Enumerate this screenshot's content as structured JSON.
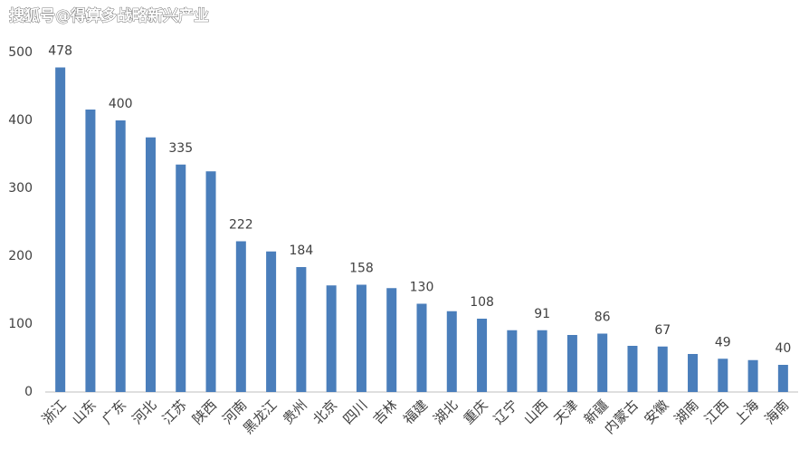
{
  "chart_data": {
    "type": "bar",
    "title": "搜狐号@得算多战略新兴产业",
    "categories": [
      "浙江",
      "山东",
      "广东",
      "河北",
      "江苏",
      "陕西",
      "河南",
      "黑龙江",
      "贵州",
      "北京",
      "四川",
      "吉林",
      "福建",
      "湖北",
      "重庆",
      "辽宁",
      "山西",
      "天津",
      "新疆",
      "内蒙古",
      "安徽",
      "湖南",
      "江西",
      "上海",
      "海南"
    ],
    "values": [
      478,
      416,
      400,
      375,
      335,
      325,
      222,
      207,
      184,
      157,
      158,
      153,
      130,
      119,
      108,
      91,
      91,
      84,
      86,
      68,
      67,
      56,
      49,
      47,
      40
    ],
    "color": "#4a7ebb",
    "data_label_step": 2,
    "ylim": [
      0,
      500
    ],
    "yticks": [
      0,
      100,
      200,
      300,
      400,
      500
    ],
    "grid": false
  }
}
